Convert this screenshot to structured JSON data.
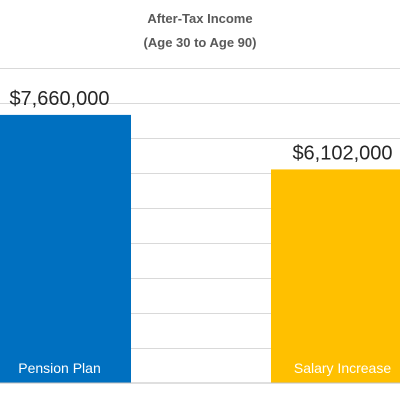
{
  "chart_data": {
    "type": "bar",
    "title": "After-Tax Income",
    "subtitle": "(Age 30 to Age 90)",
    "categories": [
      "Pension Plan",
      "Salary Increase"
    ],
    "values": [
      7660000,
      6102000
    ],
    "data_labels": [
      "$7,660,000",
      "$6,102,000"
    ],
    "colors": [
      "#0070C0",
      "#FFC000"
    ],
    "ylim": [
      0,
      9000000
    ],
    "grid": true,
    "legend": "none"
  }
}
